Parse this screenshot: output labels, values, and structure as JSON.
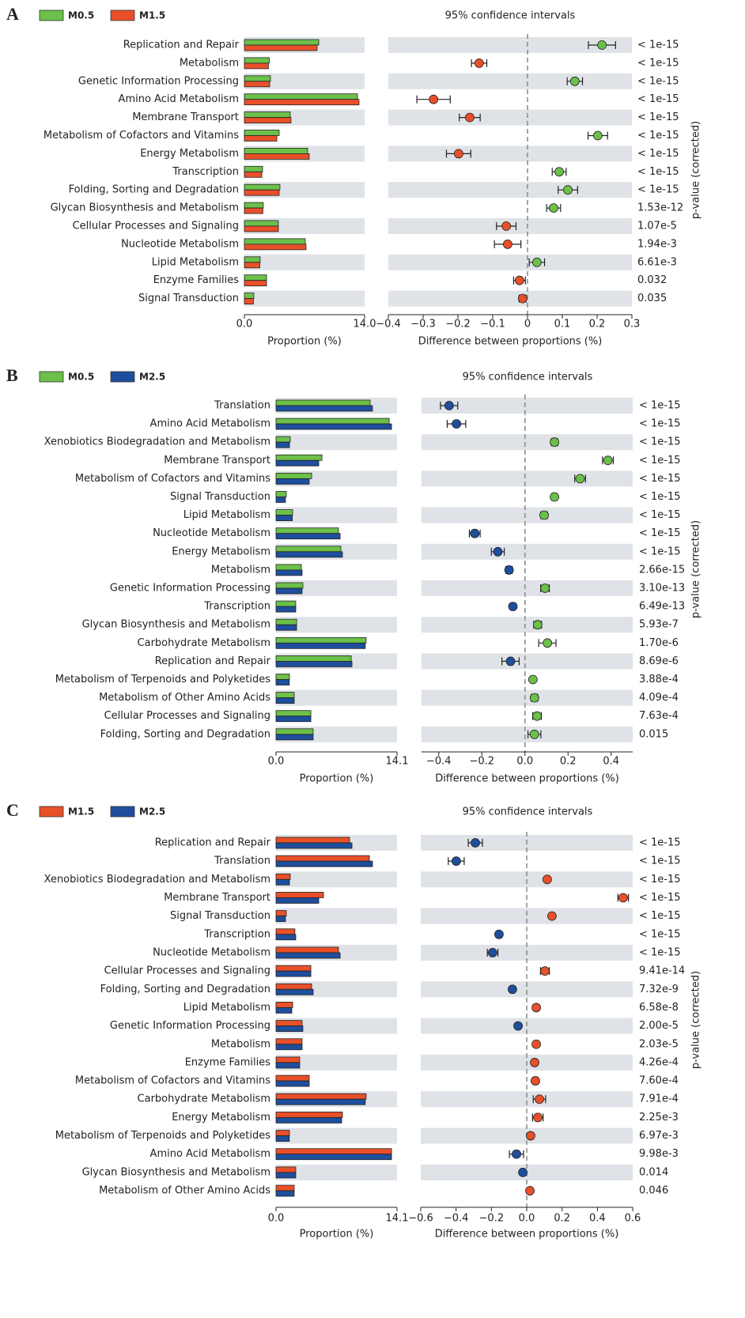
{
  "chart_data": [
    {
      "type": "bar",
      "label": "A",
      "ci_title": "95% confidence intervals",
      "xlabel": "Proportion (%)",
      "diff_xlabel": "Difference between proportions (%)",
      "p_label": "p-value (corrected)",
      "categories": [
        "Replication and Repair",
        "Metabolism",
        "Genetic Information Processing",
        "Amino Acid Metabolism",
        "Membrane Transport",
        "Metabolism of Cofactors and Vitamins",
        "Energy Metabolism",
        "Transcription",
        "Folding, Sorting and Degradation",
        "Glycan Biosynthesis and Metabolism",
        "Cellular Processes and Signaling",
        "Nucleotide Metabolism",
        "Lipid Metabolism",
        "Enzyme Families",
        "Signal Transduction"
      ],
      "series": [
        {
          "name": "M0.5",
          "color": "#6cc04a",
          "values": [
            8.66,
            2.9,
            3.04,
            13.17,
            5.34,
            4.05,
            7.37,
            2.12,
            4.14,
            2.2,
            3.96,
            7.09,
            1.84,
            2.58,
            1.1
          ]
        },
        {
          "name": "M1.5",
          "color": "#e8502a",
          "values": [
            8.47,
            2.8,
            2.95,
            13.35,
            5.43,
            3.78,
            7.55,
            2.03,
            4.05,
            2.15,
            3.96,
            7.18,
            1.8,
            2.58,
            1.05
          ]
        }
      ],
      "xlim": [
        0,
        14
      ],
      "xticks": [
        {
          "value": 0,
          "label": "0.0"
        },
        {
          "value": 14,
          "label": "14.0"
        }
      ],
      "differences": [
        0.214,
        -0.139,
        0.136,
        -0.27,
        -0.166,
        0.202,
        -0.198,
        0.091,
        0.116,
        0.075,
        -0.061,
        -0.057,
        0.027,
        -0.023,
        -0.014
      ],
      "errors": [
        0.039,
        0.022,
        0.022,
        0.048,
        0.03,
        0.028,
        0.035,
        0.02,
        0.028,
        0.02,
        0.028,
        0.038,
        0.022,
        0.017,
        0.01
      ],
      "diff_xlim": [
        -0.4,
        0.3
      ],
      "diff_xticks": [
        {
          "value": -0.4,
          "label": "−0.4"
        },
        {
          "value": -0.3,
          "label": "−0.3"
        },
        {
          "value": -0.2,
          "label": "−0.2"
        },
        {
          "value": -0.1,
          "label": "−0.1"
        },
        0,
        0.1,
        0.2,
        0.3
      ],
      "p_values": [
        "< 1e-15",
        "< 1e-15",
        "< 1e-15",
        "< 1e-15",
        "< 1e-15",
        "< 1e-15",
        "< 1e-15",
        "< 1e-15",
        "< 1e-15",
        "1.53e-12",
        "1.07e-5",
        "1.94e-3",
        "6.61e-3",
        "0.032",
        "0.035"
      ]
    },
    {
      "type": "bar",
      "label": "B",
      "ci_title": "95% confidence intervals",
      "xlabel": "Proportion (%)",
      "diff_xlabel": "Difference between proportions (%)",
      "p_label": "p-value (corrected)",
      "categories": [
        "Translation",
        "Amino Acid Metabolism",
        "Xenobiotics Biodegradation and Metabolism",
        "Membrane Transport",
        "Metabolism of Cofactors and Vitamins",
        "Signal Transduction",
        "Lipid Metabolism",
        "Nucleotide Metabolism",
        "Energy Metabolism",
        "Metabolism",
        "Genetic Information Processing",
        "Transcription",
        "Glycan Biosynthesis and Metabolism",
        "Carbohydrate Metabolism",
        "Replication and Repair",
        "Metabolism of Terpenoids and Polyketides",
        "Metabolism of Other Amino Acids",
        "Cellular Processes and Signaling",
        "Folding, Sorting and Degradation"
      ],
      "series": [
        {
          "name": "M0.5",
          "color": "#6cc04a",
          "values": [
            10.97,
            13.18,
            1.66,
            5.35,
            4.15,
            1.2,
            1.94,
            7.28,
            7.56,
            2.95,
            3.13,
            2.3,
            2.4,
            10.5,
            8.76,
            1.57,
            2.12,
            4.06,
            4.33
          ]
        },
        {
          "name": "M2.5",
          "color": "#1f4e9c",
          "values": [
            11.24,
            13.46,
            1.57,
            4.98,
            3.87,
            1.1,
            1.9,
            7.47,
            7.74,
            3.04,
            3.04,
            2.3,
            2.4,
            10.4,
            8.85,
            1.55,
            2.12,
            4.06,
            4.33
          ]
        }
      ],
      "xlim": [
        0,
        14.1
      ],
      "xticks": [
        {
          "value": 0,
          "label": "0.0"
        },
        14.1
      ],
      "differences": [
        -0.352,
        -0.318,
        0.137,
        0.385,
        0.256,
        0.137,
        0.089,
        -0.233,
        -0.126,
        -0.074,
        0.093,
        -0.056,
        0.059,
        0.104,
        -0.067,
        0.037,
        0.044,
        0.056,
        0.044
      ],
      "errors": [
        0.04,
        0.043,
        0.015,
        0.025,
        0.025,
        0.012,
        0.015,
        0.025,
        0.03,
        0.015,
        0.02,
        0.012,
        0.018,
        0.04,
        0.04,
        0.01,
        0.015,
        0.02,
        0.03
      ],
      "diff_xlim": [
        -0.48,
        0.5
      ],
      "diff_xticks": [
        {
          "value": -0.4,
          "label": "−0.4"
        },
        {
          "value": -0.2,
          "label": "−0.2"
        },
        {
          "value": 0,
          "label": "0.0"
        },
        0.2,
        0.4
      ],
      "p_values": [
        "< 1e-15",
        "< 1e-15",
        "< 1e-15",
        "< 1e-15",
        "< 1e-15",
        "< 1e-15",
        "< 1e-15",
        "< 1e-15",
        "< 1e-15",
        "2.66e-15",
        "3.10e-13",
        "6.49e-13",
        "5.93e-7",
        "1.70e-6",
        "8.69e-6",
        "3.88e-4",
        "4.09e-4",
        "7.63e-4",
        "0.015"
      ]
    },
    {
      "type": "bar",
      "label": "C",
      "ci_title": "95% confidence intervals",
      "xlabel": "Proportion (%)",
      "diff_xlabel": "Difference between proportions (%)",
      "p_label": "p-value (corrected)",
      "categories": [
        "Replication and Repair",
        "Translation",
        "Xenobiotics Biodegradation and Metabolism",
        "Membrane Transport",
        "Signal Transduction",
        "Transcription",
        "Nucleotide Metabolism",
        "Cellular Processes and Signaling",
        "Folding, Sorting and Degradation",
        "Lipid Metabolism",
        "Genetic Information Processing",
        "Metabolism",
        "Enzyme Families",
        "Metabolism of Cofactors and Vitamins",
        "Carbohydrate Metabolism",
        "Energy Metabolism",
        "Metabolism of Terpenoids and Polyketides",
        "Amino Acid Metabolism",
        "Glycan Biosynthesis and Metabolism",
        "Metabolism of Other Amino Acids"
      ],
      "series": [
        {
          "name": "M1.5",
          "color": "#e8502a",
          "values": [
            8.57,
            10.88,
            1.66,
            5.53,
            1.2,
            2.2,
            7.28,
            4.06,
            4.15,
            1.94,
            3.04,
            3.04,
            2.76,
            3.87,
            10.5,
            7.74,
            1.57,
            13.46,
            2.3,
            2.12
          ]
        },
        {
          "name": "M2.5",
          "color": "#1f4e9c",
          "values": [
            8.85,
            11.24,
            1.57,
            4.98,
            1.1,
            2.3,
            7.47,
            4.06,
            4.33,
            1.84,
            3.13,
            3.04,
            2.76,
            3.87,
            10.4,
            7.65,
            1.55,
            13.46,
            2.3,
            2.12
          ]
        }
      ],
      "xlim": [
        0,
        14.1
      ],
      "xticks": [
        {
          "value": 0,
          "label": "0.0"
        },
        14.1
      ],
      "differences": [
        -0.291,
        -0.399,
        0.116,
        0.546,
        0.143,
        -0.157,
        -0.193,
        0.103,
        -0.081,
        0.054,
        -0.049,
        0.054,
        0.045,
        0.049,
        0.072,
        0.063,
        0.022,
        -0.058,
        -0.022,
        0.018
      ],
      "errors": [
        0.04,
        0.045,
        0.01,
        0.03,
        0.012,
        0.012,
        0.03,
        0.025,
        0.012,
        0.01,
        0.012,
        0.012,
        0.012,
        0.015,
        0.035,
        0.03,
        0.01,
        0.04,
        0.012,
        0.01
      ],
      "diff_xlim": [
        -0.6,
        0.6
      ],
      "diff_xticks": [
        {
          "value": -0.6,
          "label": "−0.6"
        },
        {
          "value": -0.4,
          "label": "−0.4"
        },
        {
          "value": -0.2,
          "label": "−0.2"
        },
        {
          "value": 0,
          "label": "0.0"
        },
        0.2,
        0.4,
        0.6
      ],
      "p_values": [
        "< 1e-15",
        "< 1e-15",
        "< 1e-15",
        "< 1e-15",
        "< 1e-15",
        "< 1e-15",
        "< 1e-15",
        "9.41e-14",
        "7.32e-9",
        "6.58e-8",
        "2.00e-5",
        "2.03e-5",
        "4.26e-4",
        "7.60e-4",
        "7.91e-4",
        "2.25e-3",
        "6.97e-3",
        "9.98e-3",
        "0.014",
        "0.046"
      ]
    }
  ]
}
